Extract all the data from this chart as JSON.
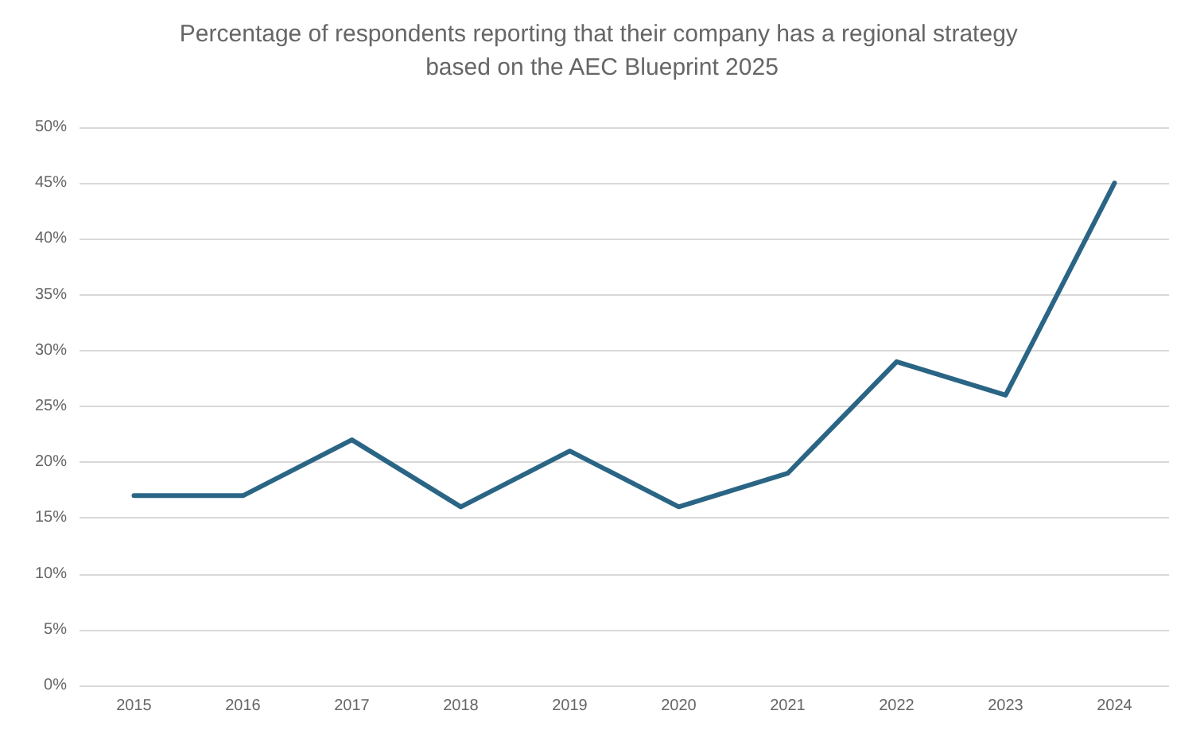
{
  "chart_data": {
    "type": "line",
    "title": "Percentage of respondents reporting that their company has a regional strategy based on the AEC Blueprint 2025",
    "categories": [
      "2015",
      "2016",
      "2017",
      "2018",
      "2019",
      "2020",
      "2021",
      "2022",
      "2023",
      "2024"
    ],
    "series": [
      {
        "color": "#2a6585",
        "values": [
          17,
          17,
          22,
          16,
          21,
          16,
          19,
          29,
          26,
          45
        ]
      }
    ],
    "ylim": [
      0,
      50
    ],
    "yticks": [
      {
        "value": 0,
        "label": "0%"
      },
      {
        "value": 5,
        "label": "5%"
      },
      {
        "value": 10,
        "label": "10%"
      },
      {
        "value": 15,
        "label": "15%"
      },
      {
        "value": 20,
        "label": "20%"
      },
      {
        "value": 25,
        "label": "25%"
      },
      {
        "value": 30,
        "label": "30%"
      },
      {
        "value": 35,
        "label": "35%"
      },
      {
        "value": 40,
        "label": "40%"
      },
      {
        "value": 45,
        "label": "45%"
      },
      {
        "value": 50,
        "label": "50%"
      }
    ],
    "grid": "y",
    "marker": "none",
    "line_style": "solid"
  }
}
